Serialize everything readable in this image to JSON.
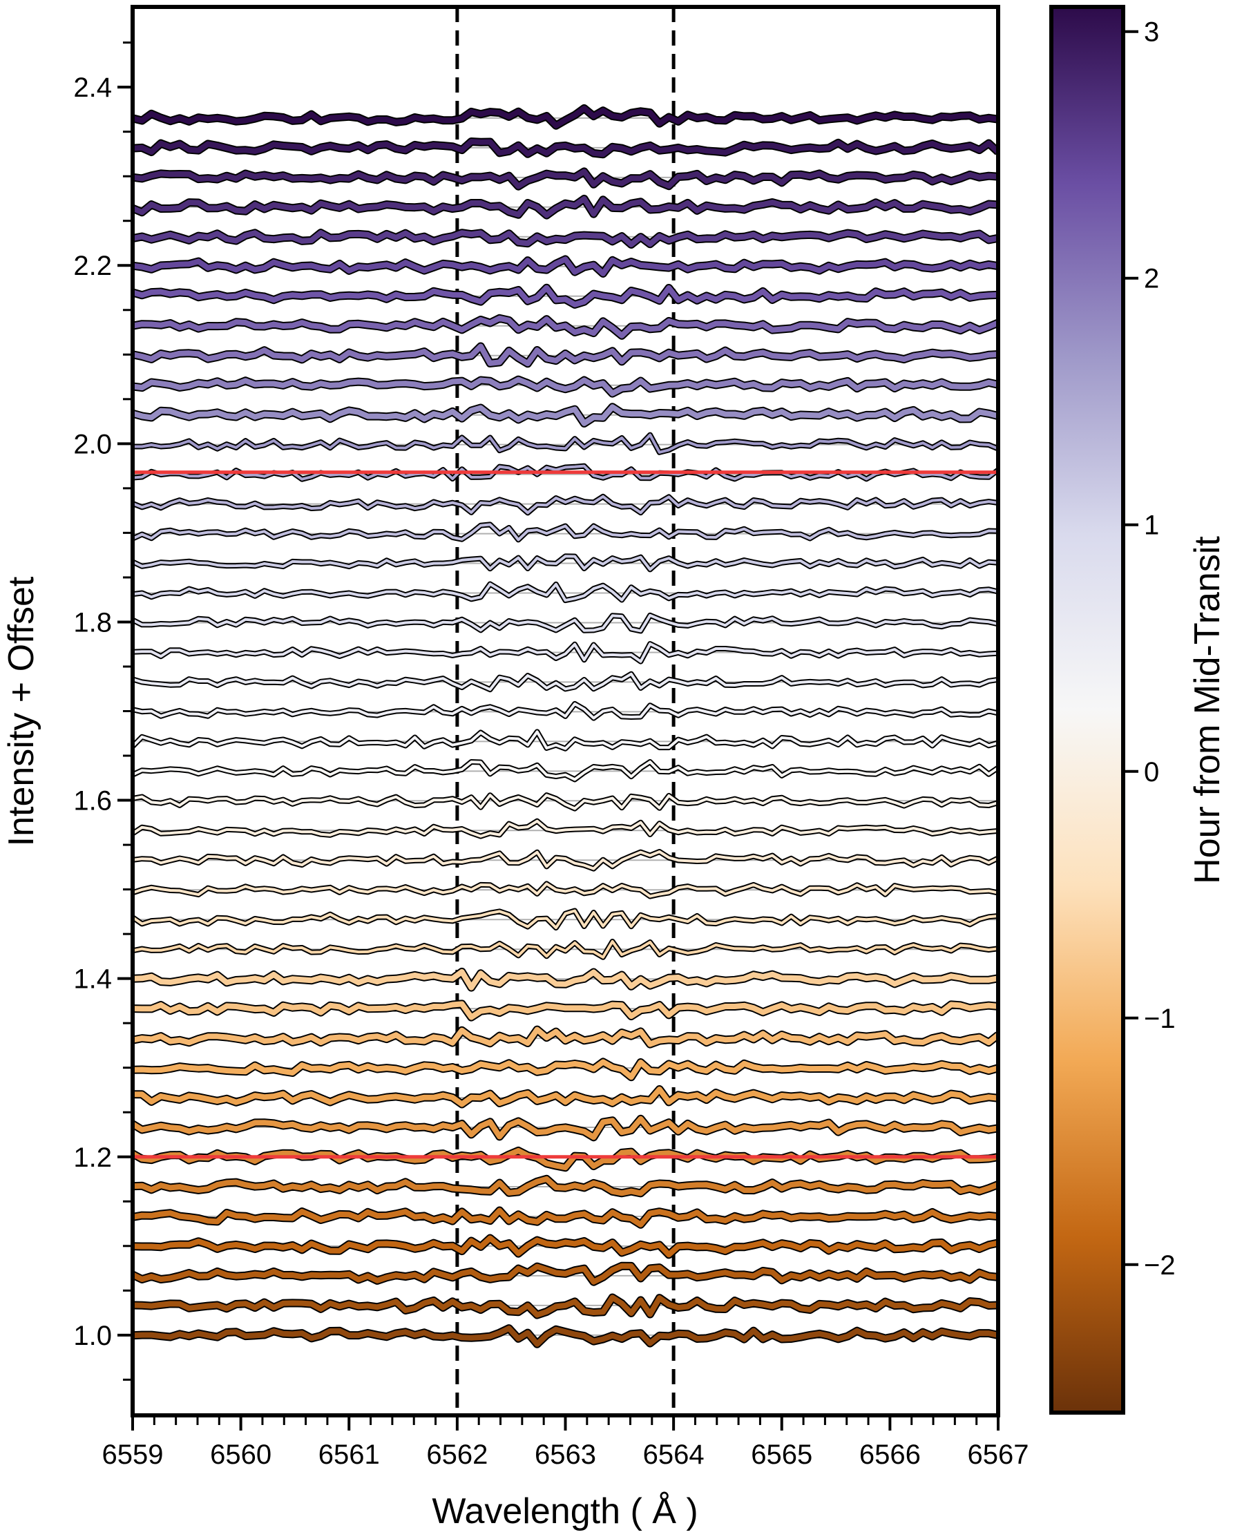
{
  "chart_data": {
    "type": "line",
    "title": "",
    "xlabel": "Wavelength ( Å )",
    "ylabel": "Intensity + Offset",
    "xlim": [
      6559,
      6567
    ],
    "ylim": [
      0.91,
      2.49
    ],
    "x_ticks": [
      6559,
      6560,
      6561,
      6562,
      6563,
      6564,
      6565,
      6566,
      6567
    ],
    "x_tick_labels": [
      "6559",
      "6560",
      "6561",
      "6562",
      "6563",
      "6564",
      "6565",
      "6566",
      "6567"
    ],
    "x_minor_step": 0.2,
    "y_ticks": [
      1.0,
      1.2,
      1.4,
      1.6,
      1.8,
      2.0,
      2.2,
      2.4
    ],
    "y_tick_labels": [
      "1.0",
      "1.2",
      "1.4",
      "1.6",
      "1.8",
      "2.0",
      "2.2",
      "2.4"
    ],
    "y_minor_step": 0.05,
    "vertical_lines": [
      6562,
      6564
    ],
    "red_lines": [
      1.2,
      1.968
    ],
    "spectra_count": 42,
    "baseline_start": 1.0,
    "baseline_step": 0.0333,
    "wavelength_points": 93,
    "noise_amplitude": 0.006,
    "core_noise_amplitude": 0.012,
    "hour_first": -2.3,
    "hour_step": 0.132,
    "colorbar": {
      "label": "Hour from Mid-Transit",
      "range": [
        -2.6,
        3.1
      ],
      "ticks": [
        -2,
        -1,
        0,
        1,
        2,
        3
      ],
      "tick_labels": [
        "−2",
        "−1",
        "0",
        "1",
        "2",
        "3"
      ],
      "stops": [
        "#6b320a",
        "#c36713",
        "#f2a955",
        "#fde1bc",
        "#f7f7f7",
        "#d9daed",
        "#9f99c9",
        "#6a4ea3",
        "#2d0b4a"
      ]
    },
    "colors": {
      "red_line": "#ee3b3b",
      "grid": "#b0b0b0",
      "axes": "#000000"
    }
  }
}
